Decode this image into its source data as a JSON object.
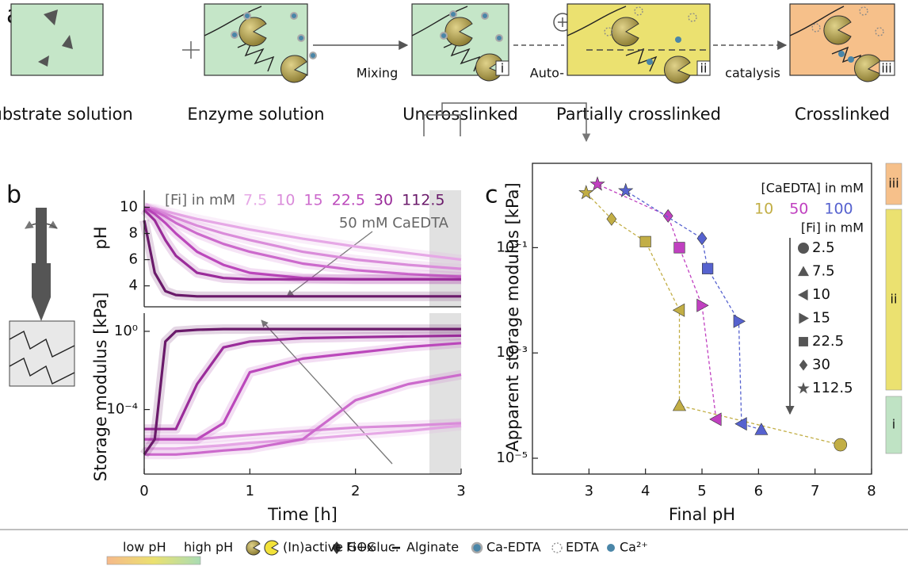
{
  "panel_a": {
    "label": "a",
    "captions": [
      "Substrate solution",
      "Enzyme solution",
      "Uncrosslinked",
      "Partially crosslinked",
      "Crosslinked"
    ],
    "tags": [
      "i",
      "ii",
      "iii"
    ],
    "arrow_labels": [
      "Mixing",
      "Auto-",
      "catalysis"
    ]
  },
  "chart_data": [
    {
      "type": "line",
      "panel_label": "b",
      "ylabel": "pH",
      "x": [
        0,
        0.1,
        0.2,
        0.3,
        0.5,
        0.75,
        1,
        1.5,
        2,
        2.5,
        3
      ],
      "xlim": [
        0,
        3
      ],
      "ylim": [
        2.4,
        11.3
      ],
      "yticks": [
        4,
        6,
        8,
        10
      ],
      "highlight_x": [
        2.7,
        3
      ],
      "legend_title": "[Fi] in mM",
      "annotation": "50 mM CaEDTA",
      "series": [
        {
          "name": "7.5",
          "color": "#e6a8e6",
          "values": [
            10,
            9.9,
            9.7,
            9.5,
            9.1,
            8.7,
            8.3,
            7.6,
            7.0,
            6.5,
            6.0
          ]
        },
        {
          "name": "10",
          "color": "#da8cda",
          "values": [
            10,
            9.8,
            9.5,
            9.2,
            8.6,
            8.0,
            7.5,
            6.6,
            6.0,
            5.6,
            5.3
          ]
        },
        {
          "name": "15",
          "color": "#cc6acc",
          "values": [
            10,
            9.7,
            9.3,
            8.8,
            8.0,
            7.2,
            6.6,
            5.7,
            5.2,
            4.9,
            4.7
          ]
        },
        {
          "name": "22.5",
          "color": "#bb48bb",
          "values": [
            10,
            9.5,
            8.8,
            8.0,
            6.6,
            5.6,
            5.0,
            4.6,
            4.5,
            4.5,
            4.5
          ]
        },
        {
          "name": "30",
          "color": "#9a2c9a",
          "values": [
            9.8,
            9.0,
            7.5,
            6.3,
            5.0,
            4.6,
            4.5,
            4.5,
            4.5,
            4.5,
            4.5
          ]
        },
        {
          "name": "112.5",
          "color": "#6a1a6a",
          "values": [
            9.0,
            5.0,
            3.6,
            3.3,
            3.2,
            3.2,
            3.2,
            3.2,
            3.2,
            3.2,
            3.2
          ]
        }
      ]
    },
    {
      "type": "line",
      "ylabel": "Storage modulus [kPa]",
      "xlabel": "Time [h]",
      "x": [
        0,
        0.1,
        0.2,
        0.3,
        0.5,
        0.75,
        1,
        1.5,
        2,
        2.5,
        3
      ],
      "xlim": [
        0,
        3
      ],
      "xticks": [
        0,
        1,
        2,
        3
      ],
      "ylim": [
        5e-08,
        8.5
      ],
      "log_y": true,
      "yticks": [
        {
          "value": 0.0001,
          "label": "10⁻⁴"
        },
        {
          "value": 1,
          "label": "10⁰"
        }
      ],
      "highlight_x": [
        2.7,
        3
      ],
      "series": [
        {
          "color": "#e6a8e6",
          "values": [
            1e-06,
            1e-06,
            1e-06,
            1e-06,
            1.2e-06,
            1.5e-06,
            2e-06,
            3e-06,
            5e-06,
            8e-06,
            1.5e-05
          ]
        },
        {
          "color": "#da8cda",
          "values": [
            3e-06,
            3e-06,
            3e-06,
            3e-06,
            3e-06,
            4e-06,
            5e-06,
            8e-06,
            1.2e-05,
            1.5e-05,
            2e-05
          ]
        },
        {
          "color": "#cc6acc",
          "values": [
            5e-07,
            5e-07,
            5e-07,
            5e-07,
            6e-07,
            8e-07,
            1e-06,
            3e-06,
            0.0003,
            0.002,
            0.006
          ]
        },
        {
          "color": "#bb48bb",
          "values": [
            3e-06,
            3e-06,
            3e-06,
            3e-06,
            3e-06,
            2e-05,
            0.008,
            0.04,
            0.08,
            0.16,
            0.25
          ]
        },
        {
          "color": "#9a2c9a",
          "values": [
            1e-05,
            1e-05,
            1e-05,
            1e-05,
            0.002,
            0.15,
            0.3,
            0.45,
            0.5,
            0.55,
            0.6
          ]
        },
        {
          "color": "#6a1a6a",
          "values": [
            5e-07,
            3e-06,
            0.3,
            1,
            1.2,
            1.3,
            1.3,
            1.3,
            1.3,
            1.3,
            1.3
          ]
        }
      ]
    },
    {
      "type": "scatter",
      "panel_label": "c",
      "xlabel": "Final pH",
      "ylabel": "Apparent storage modulus [kPa]",
      "xlim": [
        2,
        8
      ],
      "xticks": [
        3,
        4,
        5,
        6,
        7,
        8
      ],
      "ylim": [
        5e-06,
        4
      ],
      "log_y": true,
      "yticks": [
        {
          "value": 1e-05,
          "label": "10⁻⁵"
        },
        {
          "value": 0.001,
          "label": "10⁻³"
        },
        {
          "value": 0.1,
          "label": "10⁻¹"
        }
      ],
      "legend_title": "[CaEDTA] in mM",
      "fi_legend_title": "[Fi] in mM",
      "fi_legend": [
        {
          "label": "2.5",
          "marker": "circle"
        },
        {
          "label": "7.5",
          "marker": "triangle"
        },
        {
          "label": "10",
          "marker": "left"
        },
        {
          "label": "15",
          "marker": "right"
        },
        {
          "label": "22.5",
          "marker": "square"
        },
        {
          "label": "30",
          "marker": "diamond"
        },
        {
          "label": "112.5",
          "marker": "star"
        }
      ],
      "series": [
        {
          "name": "10",
          "color": "#c2ae45",
          "x": [
            7.45,
            4.6,
            4.6,
            4.0,
            3.4,
            2.95
          ],
          "values": [
            1.8e-05,
            0.0001,
            0.0065,
            0.13,
            0.35,
            1.1
          ],
          "markers": [
            "circle",
            "triangle",
            "left",
            "square",
            "diamond",
            "star"
          ]
        },
        {
          "name": "50",
          "color": "#c040c0",
          "x": [
            5.25,
            5.0,
            4.6,
            4.4,
            3.15
          ],
          "values": [
            5.5e-05,
            0.008,
            0.1,
            0.4,
            1.6
          ],
          "markers": [
            "left",
            "right",
            "square",
            "diamond",
            "star"
          ]
        },
        {
          "name": "100",
          "color": "#5662cf",
          "x": [
            6.05,
            5.7,
            5.65,
            5.1,
            5.0,
            3.65
          ],
          "values": [
            3.5e-05,
            4.5e-05,
            0.004,
            0.04,
            0.15,
            1.2
          ],
          "markers": [
            "triangle",
            "left",
            "right",
            "square",
            "diamond",
            "star"
          ]
        }
      ]
    }
  ],
  "stage_bar": {
    "labels": [
      "iii",
      "ii",
      "i"
    ],
    "colors": [
      "#f6c08a",
      "#ebe170",
      "#bfe3c4"
    ]
  },
  "legend": {
    "ph_low": "low pH",
    "ph_high": "high pH",
    "items": [
      "(In)active GOx",
      "Fi+Gluc.",
      "Alginate",
      "Ca-EDTA",
      "EDTA",
      "Ca²⁺"
    ]
  }
}
